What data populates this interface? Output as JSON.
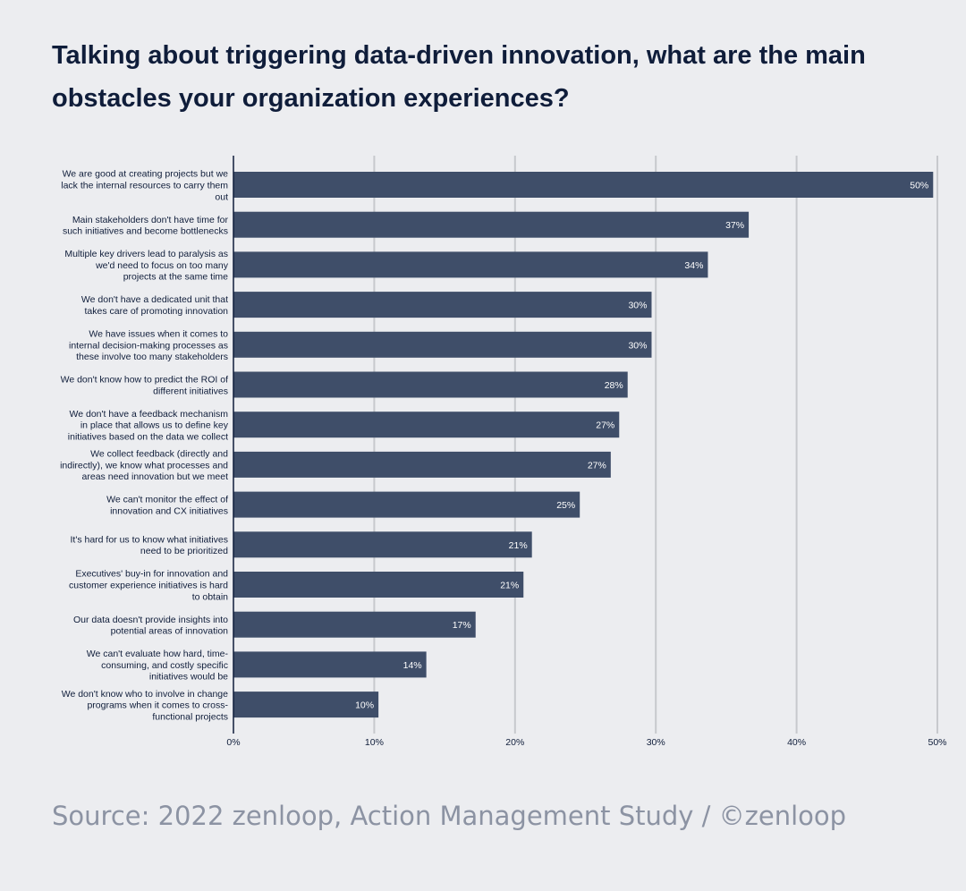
{
  "title": "Talking about triggering data-driven innovation, what are the main obstacles your organization experiences?",
  "source": "Source: 2022 zenloop, Action Management Study / ©zenloop",
  "colors": {
    "bar": "#3f4e69",
    "grid": "#c7c9cd",
    "axis": "#0f1d3a",
    "label": "#0f1d3a",
    "value_label": "#ffffff",
    "source": "#8c93a3",
    "background": "#ecedf0"
  },
  "chart_data": {
    "type": "bar",
    "orientation": "horizontal",
    "title": "Talking about triggering data-driven innovation, what are the main obstacles your organization experiences?",
    "xlim": [
      0,
      50
    ],
    "x_ticks": [
      "0%",
      "10%",
      "20%",
      "30%",
      "40%",
      "50%"
    ],
    "grid": true,
    "categories": [
      [
        "We are good at creating projects but we",
        "lack the internal resources to carry them",
        "out"
      ],
      [
        "Main stakeholders don't have time for",
        "such initiatives and become bottlenecks"
      ],
      [
        "Multiple key drivers lead to paralysis as",
        "we'd need to focus on too many",
        "projects at the same time"
      ],
      [
        "We don't have a dedicated unit that",
        "takes care of promoting innovation"
      ],
      [
        "We have issues when it comes to",
        "internal decision-making processes as",
        "these involve too many stakeholders"
      ],
      [
        "We don't know how to predict the ROI of",
        "different initiatives"
      ],
      [
        "We don't have a feedback mechanism",
        "in place that allows us to define key",
        "initiatives based on the data we collect"
      ],
      [
        "We collect feedback (directly and",
        "indirectly), we know what processes and",
        "areas need innovation but we meet"
      ],
      [
        "We can't monitor the effect of",
        "innovation and CX initiatives"
      ],
      [
        "It's hard for us to know what initiatives",
        "need to be prioritized"
      ],
      [
        "Executives' buy-in for innovation and",
        "customer experience initiatives is hard",
        "to obtain"
      ],
      [
        "Our data doesn't provide insights into",
        "potential areas of innovation"
      ],
      [
        "We can't evaluate how hard, time-",
        "consuming, and costly specific",
        "initiatives would be"
      ],
      [
        "We don't know who to involve in change",
        "programs when it comes to cross-",
        "functional projects"
      ]
    ],
    "values": [
      49.7,
      36.6,
      33.7,
      29.7,
      29.7,
      28.0,
      27.4,
      26.8,
      24.6,
      21.2,
      20.6,
      17.2,
      13.7,
      10.3
    ],
    "value_labels": [
      "50%",
      "37%",
      "34%",
      "30%",
      "30%",
      "28%",
      "27%",
      "27%",
      "25%",
      "21%",
      "21%",
      "17%",
      "14%",
      "10%"
    ]
  }
}
